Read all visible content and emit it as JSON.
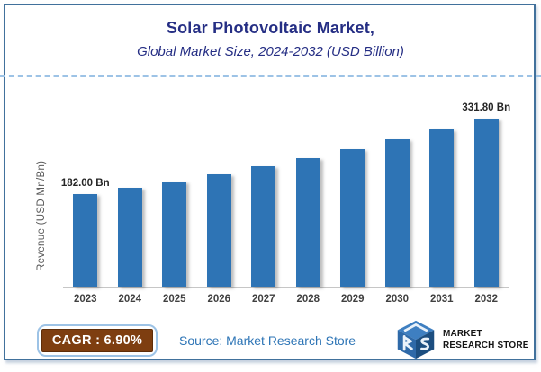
{
  "header": {
    "title": "Solar Photovoltaic Market,",
    "subtitle": "Global Market Size, 2024-2032 (USD Billion)"
  },
  "chart_data": {
    "type": "bar",
    "title": "Solar Photovoltaic Market, Global Market Size, 2024-2032 (USD Billion)",
    "categories": [
      "2023",
      "2024",
      "2025",
      "2026",
      "2027",
      "2028",
      "2029",
      "2030",
      "2031",
      "2032"
    ],
    "values": [
      182.0,
      194.56,
      207.98,
      222.33,
      237.67,
      254.07,
      271.6,
      290.34,
      310.37,
      331.8
    ],
    "visible_data_labels": {
      "2023": "182.00 Bn",
      "2032": "331.80 Bn"
    },
    "xlabel": "",
    "ylabel": "Revenue (USD Mn/Bn)",
    "ylim": [
      0,
      340
    ],
    "grid": false,
    "legend_position": "none",
    "bar_color": "#2E74B5",
    "cagr_percent": "6.90%"
  },
  "footer": {
    "cagr_text": "CAGR : 6.90%",
    "source_text": "Source: Market Research Store",
    "logo": {
      "line1": "MARKET",
      "line2": "RESEARCH STORE"
    }
  },
  "colors": {
    "title_text": "#252E84",
    "frame_border": "#41719C",
    "dashed_divider": "#9DC3E6",
    "bar_fill": "#2E74B5",
    "cagr_badge_bg": "#7E3E10",
    "cagr_badge_border": "#9DC3E6",
    "source_text": "#2E75B6",
    "x_axis_label": "#404040",
    "y_axis_title": "#595959",
    "data_label": "#262626"
  }
}
